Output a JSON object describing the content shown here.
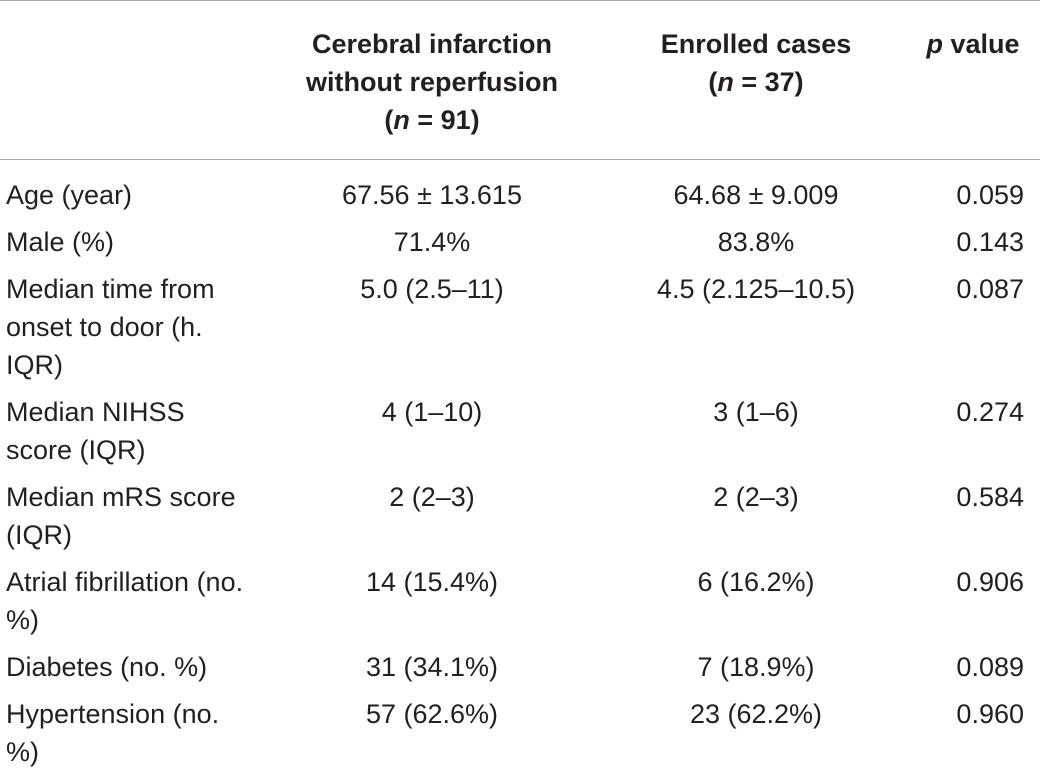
{
  "header": {
    "col0": "",
    "col1_line1": "Cerebral infarction",
    "col1_line2": "without reperfusion",
    "col1_n_open": "(",
    "col1_n_italic": "n",
    "col1_n_rest": " = 91)",
    "col2_line1": "Enrolled cases",
    "col2_n_open": "(",
    "col2_n_italic": "n",
    "col2_n_rest": " = 37)",
    "col3_italic": "p",
    "col3_rest": " value"
  },
  "rows": [
    {
      "label": "Age (year)",
      "without_reperfusion": "67.56 ± 13.615",
      "enrolled": "64.68 ± 9.009",
      "p": "0.059"
    },
    {
      "label": "Male (%)",
      "without_reperfusion": "71.4%",
      "enrolled": "83.8%",
      "p": "0.143"
    },
    {
      "label": "Median time from onset to door (h. IQR)",
      "without_reperfusion": "5.0 (2.5–11)",
      "enrolled": "4.5 (2.125–10.5)",
      "p": "0.087"
    },
    {
      "label": "Median NIHSS score (IQR)",
      "without_reperfusion": "4 (1–10)",
      "enrolled": "3 (1–6)",
      "p": "0.274"
    },
    {
      "label": "Median mRS score (IQR)",
      "without_reperfusion": "2 (2–3)",
      "enrolled": "2 (2–3)",
      "p": "0.584"
    },
    {
      "label": "Atrial fibrillation (no. %)",
      "without_reperfusion": "14 (15.4%)",
      "enrolled": "6 (16.2%)",
      "p": "0.906"
    },
    {
      "label": "Diabetes (no. %)",
      "without_reperfusion": "31 (34.1%)",
      "enrolled": "7 (18.9%)",
      "p": "0.089"
    },
    {
      "label": "Hypertension (no. %)",
      "without_reperfusion": "57 (62.6%)",
      "enrolled": "23 (62.2%)",
      "p": "0.960"
    }
  ]
}
